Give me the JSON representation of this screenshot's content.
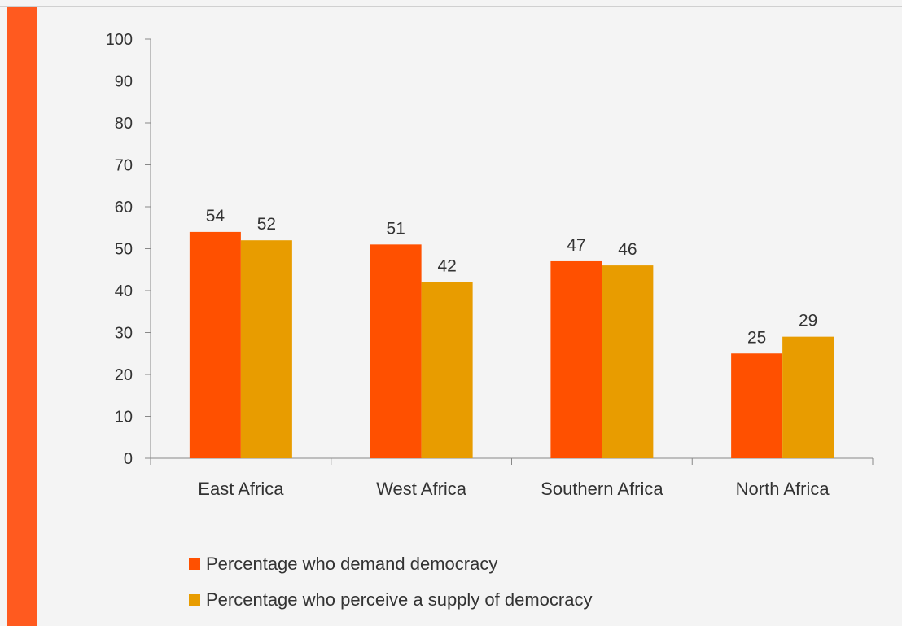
{
  "colors": {
    "accent_bar": "#ff5a1f",
    "series_demand": "#ff5000",
    "series_supply": "#e89c00",
    "axis": "#888888",
    "text": "#333333"
  },
  "chart_data": {
    "type": "bar",
    "categories": [
      "East Africa",
      "West Africa",
      "Southern Africa",
      "North Africa"
    ],
    "series": [
      {
        "name": "Percentage who demand democracy",
        "values": [
          54,
          51,
          47,
          25
        ]
      },
      {
        "name": "Percentage who perceive a supply of democracy",
        "values": [
          52,
          42,
          46,
          29
        ]
      }
    ],
    "title": "",
    "xlabel": "",
    "ylabel": "",
    "ylim": [
      0,
      100
    ],
    "yticks": [
      "0",
      "10",
      "20",
      "30",
      "40",
      "50",
      "60",
      "70",
      "80",
      "90",
      "100"
    ],
    "grid": false,
    "data_labels": true,
    "legend_position": "bottom"
  },
  "legend": {
    "items": [
      {
        "label": "Percentage who demand democracy",
        "color": "#ff5000"
      },
      {
        "label": "Percentage who perceive a supply of democracy",
        "color": "#e89c00"
      }
    ]
  }
}
